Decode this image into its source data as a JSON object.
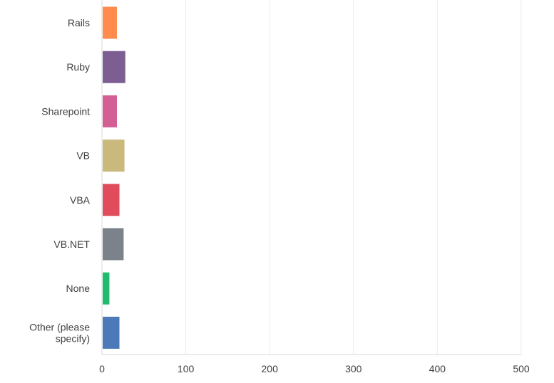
{
  "chart_data": {
    "type": "bar",
    "orientation": "horizontal",
    "categories": [
      "Rails",
      "Ruby",
      "Sharepoint",
      "VB",
      "VBA",
      "VB.NET",
      "None",
      "Other (please specify)"
    ],
    "values": [
      17,
      27,
      17,
      26,
      20,
      25,
      8,
      20
    ],
    "colors": [
      "#ff8b4f",
      "#7d5e93",
      "#d45f94",
      "#c9b97c",
      "#e04c5c",
      "#7b8289",
      "#1ebc6c",
      "#4c7ab8"
    ],
    "xlim": [
      0,
      500
    ],
    "xticks": [
      0,
      100,
      200,
      300,
      400,
      500
    ],
    "grid": "vertical",
    "title": "",
    "xlabel": "",
    "ylabel": ""
  }
}
